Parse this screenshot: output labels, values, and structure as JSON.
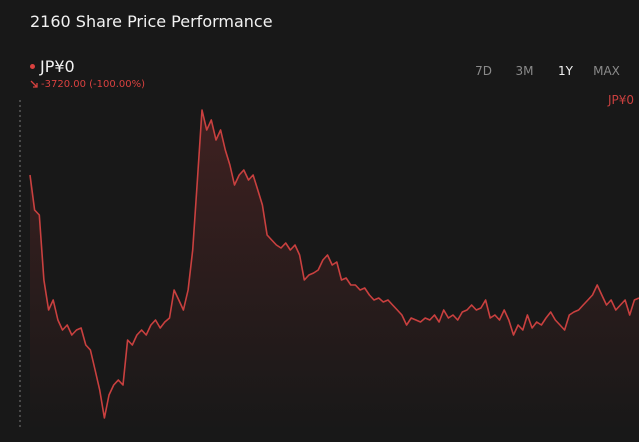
{
  "header": {
    "title": "2160 Share Price Performance",
    "price": "JP¥0",
    "change": "-3720.00 (-100.00%)",
    "ranges": [
      "7D",
      "3M",
      "1Y",
      "MAX"
    ],
    "active_range": "1Y"
  },
  "chart_data": {
    "type": "line",
    "color": "#c9403f",
    "last_label": "JP¥0",
    "values": [
      255,
      220,
      215,
      150,
      120,
      130,
      110,
      100,
      105,
      95,
      100,
      102,
      85,
      80,
      60,
      40,
      12,
      35,
      45,
      50,
      45,
      90,
      85,
      95,
      100,
      95,
      105,
      110,
      102,
      108,
      112,
      140,
      130,
      120,
      140,
      180,
      250,
      320,
      300,
      310,
      290,
      300,
      280,
      265,
      245,
      255,
      260,
      250,
      255,
      240,
      225,
      195,
      190,
      185,
      182,
      187,
      180,
      185,
      175,
      150,
      155,
      157,
      160,
      170,
      175,
      165,
      168,
      150,
      152,
      145,
      145,
      140,
      142,
      135,
      130,
      132,
      128,
      130,
      125,
      120,
      115,
      105,
      112,
      110,
      108,
      112,
      110,
      115,
      108,
      120,
      112,
      115,
      110,
      118,
      120,
      125,
      120,
      122,
      130,
      112,
      115,
      110,
      120,
      110,
      95,
      105,
      100,
      115,
      102,
      108,
      105,
      112,
      118,
      110,
      105,
      100,
      115,
      118,
      120,
      125,
      130,
      135,
      145,
      135,
      125,
      130,
      120,
      125,
      130,
      115,
      130,
      132
    ]
  }
}
